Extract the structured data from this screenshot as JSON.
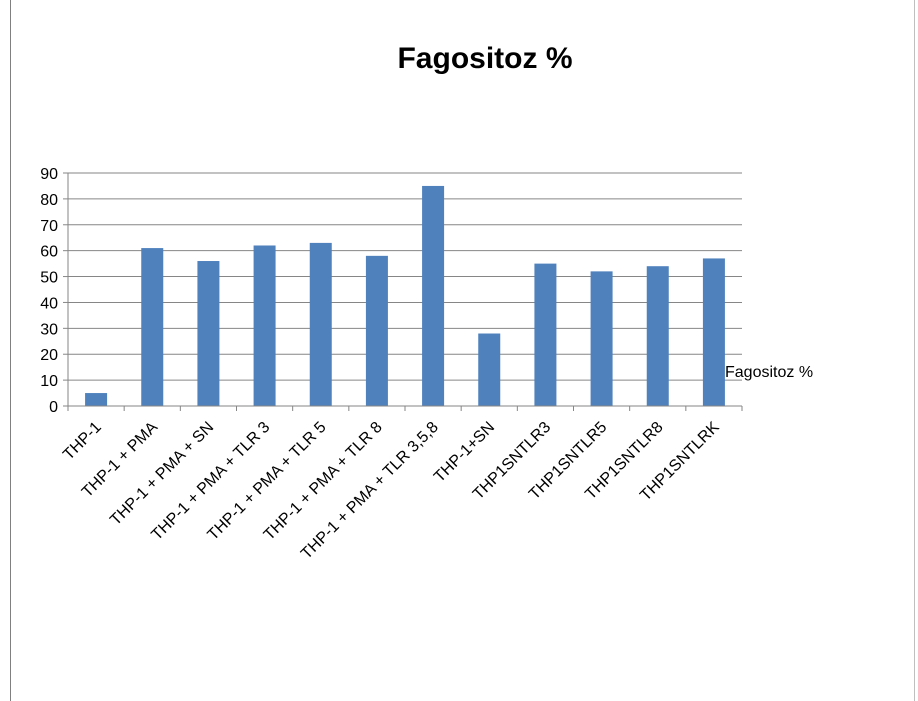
{
  "chart_data": {
    "type": "bar",
    "title": "Fagositoz %",
    "categories": [
      "THP-1",
      "THP-1 + PMA",
      "THP-1 + PMA + SN",
      "THP-1 + PMA + TLR 3",
      "THP-1 + PMA + TLR 5",
      "THP-1 + PMA + TLR 8",
      "THP-1 + PMA + TLR 3,5,8",
      "THP-1+SN",
      "THP1SNTLR3",
      "THP1SNTLR5",
      "THP1SNTLR8",
      "THP1SNTLRK"
    ],
    "series": [
      {
        "name": "Fagositoz %",
        "values": [
          5,
          61,
          56,
          62,
          63,
          58,
          85,
          28,
          55,
          52,
          54,
          57
        ]
      }
    ],
    "xlabel": "",
    "ylabel": "",
    "ylim": [
      0,
      90
    ],
    "yticks": [
      "0",
      "10",
      "20",
      "30",
      "40",
      "50",
      "60",
      "70",
      "80",
      "90"
    ],
    "grid": true,
    "legend_position": "right",
    "colors": {
      "bar": "#4f81bd",
      "grid": "#868686",
      "axis": "#868686"
    }
  }
}
